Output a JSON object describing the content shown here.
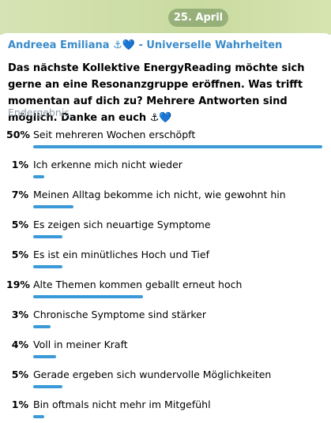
{
  "date": "25. April",
  "message": {
    "author": "Andreea Emiliana ⚓💙 - Universelle Wahrheiten",
    "question": "Das nächste Kollektive EnergyReading möchte sich gerne an eine Resonanzgruppe eröffnen. Was trifft momentan auf dich zu? Mehrere Antworten sind möglich. Danke an euch ⚓💙",
    "status": "Endergebnis",
    "options": [
      {
        "value": 50,
        "label": "50%",
        "text": "Seit mehreren Wochen erschöpft"
      },
      {
        "value": 1,
        "label": "1%",
        "text": "Ich erkenne mich nicht wieder"
      },
      {
        "value": 7,
        "label": "7%",
        "text": "Meinen Alltag bekomme ich nicht, wie gewohnt hin"
      },
      {
        "value": 5,
        "label": "5%",
        "text": "Es zeigen sich neuartige Symptome"
      },
      {
        "value": 5,
        "label": "5%",
        "text": "Es ist ein minütliches Hoch und Tief"
      },
      {
        "value": 19,
        "label": "19%",
        "text": "Alte Themen kommen geballt erneut hoch"
      },
      {
        "value": 3,
        "label": "3%",
        "text": "Chronische Symptome sind stärker"
      },
      {
        "value": 4,
        "label": "4%",
        "text": "Voll in meiner Kraft"
      },
      {
        "value": 5,
        "label": "5%",
        "text": "Gerade ergeben sich wundervolle Möglichkeiten"
      },
      {
        "value": 1,
        "label": "1%",
        "text": "Bin oftmals nicht mehr im Mitgefühl"
      }
    ]
  }
}
